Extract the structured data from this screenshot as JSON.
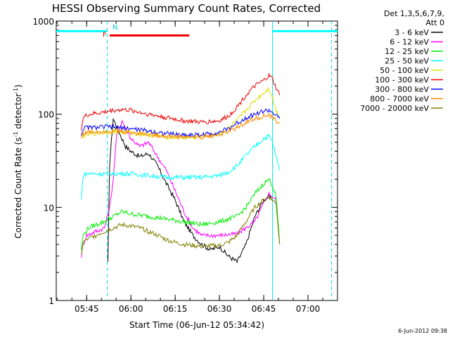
{
  "chart_data": {
    "type": "line",
    "title": "HESSI Observing Summary Count Rates, Corrected",
    "xlabel": "Start Time (06-Jun-12 05:34:42)",
    "ylabel_main": "Corrected Count Rate (s",
    "ylabel_sup1": "-1",
    "ylabel_mid": " detector",
    "ylabel_sup2": "-1",
    "ylabel_end": ")",
    "yscale": "log",
    "ylim": [
      1,
      1000
    ],
    "xlim": [
      5.5783,
      7.1667
    ],
    "x_ticks": [
      {
        "value": 5.75,
        "label": "05:45"
      },
      {
        "value": 6.0,
        "label": "06:00"
      },
      {
        "value": 6.25,
        "label": "06:15"
      },
      {
        "value": 6.5,
        "label": "06:30"
      },
      {
        "value": 6.75,
        "label": "06:45"
      },
      {
        "value": 7.0,
        "label": "07:00"
      }
    ],
    "y_ticks": [
      {
        "value": 1,
        "label": "1"
      },
      {
        "value": 10,
        "label": "10"
      },
      {
        "value": 100,
        "label": "100"
      },
      {
        "value": 1000,
        "label": "1000"
      }
    ],
    "legend_header": [
      "Det 1,3,5,6,7,9,",
      "Att 0"
    ],
    "legend_placement": "right",
    "series": [
      {
        "name": "3 - 6 keV",
        "color": "#000000",
        "x": [
          5.87,
          5.88,
          5.9,
          5.94,
          5.97,
          6.0,
          6.05,
          6.1,
          6.15,
          6.2,
          6.25,
          6.3,
          6.35,
          6.4,
          6.45,
          6.5,
          6.55,
          6.6,
          6.65,
          6.7,
          6.75,
          6.78,
          6.8
        ],
        "values": [
          2.5,
          30,
          90,
          60,
          45,
          40,
          35,
          38,
          28,
          18,
          12,
          7,
          5,
          4,
          3.5,
          3.8,
          3,
          2.6,
          4,
          8,
          12,
          13,
          12
        ]
      },
      {
        "name": "6 - 12 keV",
        "color": "#ff00ff",
        "x": [
          5.72,
          5.73,
          5.75,
          5.8,
          5.85,
          5.88,
          5.9,
          5.92,
          5.95,
          6.0,
          6.05,
          6.1,
          6.15,
          6.2,
          6.25,
          6.3,
          6.35,
          6.4,
          6.5,
          6.6,
          6.7,
          6.75,
          6.78,
          6.8,
          6.82,
          6.84
        ],
        "values": [
          3,
          4,
          5,
          5.5,
          6,
          10,
          20,
          60,
          85,
          55,
          45,
          50,
          35,
          25,
          15,
          9,
          6,
          5,
          5,
          5.2,
          7,
          11,
          14,
          13,
          12,
          4
        ]
      },
      {
        "name": "12 - 25 keV",
        "color": "#00ee00",
        "x": [
          5.72,
          5.73,
          5.76,
          5.8,
          5.85,
          5.9,
          5.95,
          6.0,
          6.1,
          6.2,
          6.3,
          6.4,
          6.5,
          6.6,
          6.65,
          6.7,
          6.75,
          6.78,
          6.8,
          6.82,
          6.84
        ],
        "values": [
          3.5,
          5,
          6,
          6.5,
          7,
          8,
          9,
          8.5,
          8,
          7.5,
          7,
          6.5,
          7,
          8,
          10,
          14,
          18,
          20,
          17,
          13,
          4
        ]
      },
      {
        "name": "25 - 50 keV",
        "color": "#00ffff",
        "x": [
          5.72,
          5.73,
          5.75,
          5.8,
          5.85,
          5.9,
          6.0,
          6.1,
          6.2,
          6.3,
          6.4,
          6.5,
          6.55,
          6.6,
          6.65,
          6.7,
          6.75,
          6.78,
          6.8,
          6.82,
          6.84
        ],
        "values": [
          12,
          22,
          23,
          23,
          23,
          23,
          23,
          22,
          21,
          21,
          21,
          22,
          24,
          28,
          36,
          45,
          55,
          58,
          50,
          35,
          25
        ]
      },
      {
        "name": "50 - 100 keV",
        "color": "#dddd00",
        "x": [
          5.72,
          5.73,
          5.75,
          5.8,
          5.85,
          5.9,
          6.0,
          6.1,
          6.2,
          6.3,
          6.4,
          6.5,
          6.55,
          6.6,
          6.65,
          6.7,
          6.75,
          6.78,
          6.8,
          6.82,
          6.84
        ],
        "values": [
          55,
          58,
          60,
          62,
          64,
          65,
          63,
          60,
          57,
          56,
          57,
          62,
          70,
          85,
          110,
          140,
          170,
          190,
          150,
          110,
          90
        ]
      },
      {
        "name": "100 - 300 keV",
        "color": "#ee0000",
        "x": [
          5.72,
          5.73,
          5.75,
          5.8,
          5.85,
          5.9,
          5.95,
          6.0,
          6.1,
          6.2,
          6.3,
          6.4,
          6.5,
          6.55,
          6.6,
          6.65,
          6.7,
          6.75,
          6.78,
          6.8,
          6.82,
          6.84
        ],
        "values": [
          70,
          90,
          98,
          102,
          105,
          110,
          112,
          110,
          100,
          92,
          85,
          82,
          85,
          95,
          120,
          160,
          200,
          230,
          260,
          240,
          190,
          160
        ]
      },
      {
        "name": "300 - 800 keV",
        "color": "#0000ff",
        "x": [
          5.72,
          5.73,
          5.75,
          5.8,
          5.85,
          5.9,
          6.0,
          6.1,
          6.2,
          6.3,
          6.4,
          6.5,
          6.55,
          6.6,
          6.65,
          6.7,
          6.75,
          6.78,
          6.8,
          6.82,
          6.84
        ],
        "values": [
          60,
          70,
          72,
          72,
          73,
          73,
          70,
          66,
          62,
          60,
          60,
          64,
          70,
          80,
          92,
          100,
          108,
          110,
          105,
          95,
          90
        ]
      },
      {
        "name": "800 - 7000 keV",
        "color": "#ff8800",
        "x": [
          5.72,
          5.73,
          5.75,
          5.8,
          5.85,
          5.9,
          6.0,
          6.1,
          6.2,
          6.3,
          6.4,
          6.5,
          6.55,
          6.6,
          6.65,
          6.7,
          6.75,
          6.78,
          6.8,
          6.82,
          6.84
        ],
        "values": [
          55,
          62,
          64,
          65,
          66,
          66,
          64,
          61,
          58,
          57,
          57,
          60,
          65,
          72,
          82,
          90,
          95,
          96,
          92,
          85,
          80
        ]
      },
      {
        "name": "7000 - 20000 keV",
        "color": "#808000",
        "x": [
          5.72,
          5.73,
          5.75,
          5.8,
          5.85,
          5.9,
          5.95,
          6.0,
          6.05,
          6.1,
          6.15,
          6.2,
          6.25,
          6.3,
          6.4,
          6.5,
          6.55,
          6.6,
          6.65,
          6.7,
          6.75,
          6.78,
          6.8,
          6.82,
          6.84
        ],
        "values": [
          3,
          4.2,
          4.5,
          5,
          5.5,
          6,
          6.5,
          6.3,
          6,
          5.5,
          5,
          4.5,
          4.2,
          4,
          3.8,
          3.9,
          4.2,
          5,
          7,
          10,
          12,
          13,
          12,
          11,
          4
        ]
      }
    ],
    "flags": [
      {
        "label": "F",
        "color": "#ee0000",
        "x_start": 5.88,
        "x_end": 6.33,
        "level": 700
      },
      {
        "label": "N",
        "color": "#00cccc",
        "x_start": 5.88,
        "x_end": 5.88,
        "level": 870
      }
    ],
    "night_bars": [
      {
        "x_start": 5.5783,
        "x_end": 5.8667,
        "level": 780
      },
      {
        "x_start": 6.8,
        "x_end": 7.1667,
        "level": 780
      }
    ],
    "verticals": [
      {
        "x": 5.8667,
        "style": "dashed"
      },
      {
        "x": 6.8,
        "style": "solid"
      },
      {
        "x": 7.1333,
        "style": "dashed"
      }
    ],
    "footer_date": "6-Jun-2012 09:38"
  }
}
